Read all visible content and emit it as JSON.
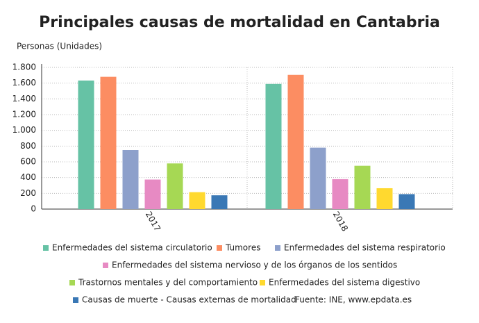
{
  "chart_data": {
    "type": "bar",
    "title": "Principales causas de mortalidad en Cantabria",
    "y_label": "Personas (Unidades)",
    "categories": [
      "2017",
      "2018"
    ],
    "series": [
      {
        "name": "Enfermedades del sistema circulatorio",
        "color": "#66c2a5",
        "values": [
          1633,
          1590
        ]
      },
      {
        "name": "Tumores",
        "color": "#fc8d62",
        "values": [
          1680,
          1705
        ]
      },
      {
        "name": "Enfermedades del sistema respiratorio",
        "color": "#8da0cb",
        "values": [
          750,
          780
        ]
      },
      {
        "name": "Enfermedades del sistema nervioso y de los órganos de los sentidos",
        "color": "#e78ac3",
        "values": [
          375,
          380
        ]
      },
      {
        "name": "Trastornos mentales y del comportamiento",
        "color": "#a6d854",
        "values": [
          580,
          550
        ]
      },
      {
        "name": "Enfermedades del sistema digestivo",
        "color": "#ffd92f",
        "values": [
          215,
          265
        ]
      },
      {
        "name": "Causas de muerte - Causas externas de mortalidad",
        "color": "#3a78b5",
        "values": [
          175,
          190
        ]
      }
    ],
    "ylim": [
      0,
      1800
    ],
    "yticks": [
      0,
      200,
      400,
      600,
      800,
      {
        "value": 1000,
        "label": "1.000"
      },
      {
        "value": 1200,
        "label": "1.200"
      },
      {
        "value": 1400,
        "label": "1.400"
      },
      {
        "value": 1600,
        "label": "1.600"
      },
      {
        "value": 1800,
        "label": "1.800"
      }
    ],
    "grid": true,
    "source": "Fuente: INE, www.epdata.es"
  }
}
